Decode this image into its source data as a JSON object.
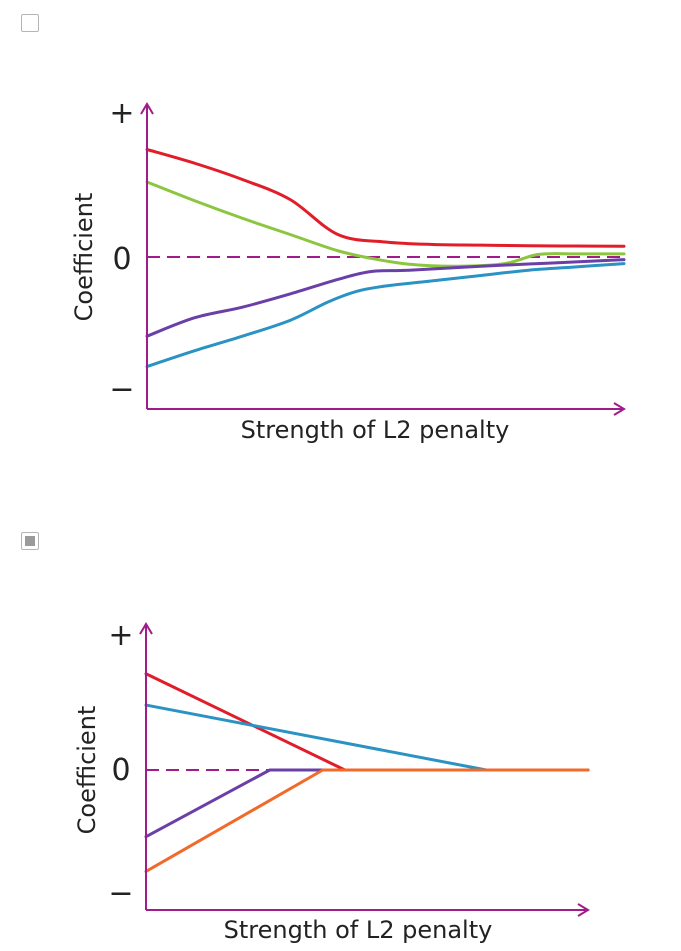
{
  "options": [
    {
      "checked": false,
      "chart_data": {
        "type": "line",
        "title": "",
        "xlabel": "Strength of L2 penalty",
        "ylabel": "Coefficient",
        "y_tick_labels": {
          "plus": "+",
          "zero": "0",
          "minus": "−"
        },
        "xlim": [
          0,
          1
        ],
        "ylim": [
          -1,
          1
        ],
        "zero_line": "dashed",
        "axis_color": "#a01c8a",
        "series": [
          {
            "color": "#e11d2a",
            "points": [
              [
                0,
                0.86
              ],
              [
                0.1,
                0.75
              ],
              [
                0.2,
                0.62
              ],
              [
                0.3,
                0.46
              ],
              [
                0.4,
                0.18
              ],
              [
                0.5,
                0.12
              ],
              [
                0.6,
                0.1
              ],
              [
                0.7,
                0.095
              ],
              [
                0.8,
                0.09
              ],
              [
                0.9,
                0.088
              ],
              [
                1,
                0.086
              ]
            ]
          },
          {
            "color": "#8cc63f",
            "points": [
              [
                0,
                0.6
              ],
              [
                0.1,
                0.45
              ],
              [
                0.2,
                0.31
              ],
              [
                0.3,
                0.18
              ],
              [
                0.4,
                0.05
              ],
              [
                0.47,
                -0.01
              ],
              [
                0.55,
                -0.055
              ],
              [
                0.65,
                -0.07
              ],
              [
                0.75,
                -0.05
              ],
              [
                0.82,
                0.02
              ],
              [
                0.9,
                0.025
              ],
              [
                1,
                0.025
              ]
            ]
          },
          {
            "color": "#6a3fa8",
            "points": [
              [
                0,
                -0.6
              ],
              [
                0.1,
                -0.46
              ],
              [
                0.2,
                -0.38
              ],
              [
                0.3,
                -0.28
              ],
              [
                0.4,
                -0.17
              ],
              [
                0.47,
                -0.11
              ],
              [
                0.55,
                -0.1
              ],
              [
                0.7,
                -0.07
              ],
              [
                0.85,
                -0.045
              ],
              [
                1,
                -0.02
              ]
            ]
          },
          {
            "color": "#2a93c4",
            "points": [
              [
                0,
                -0.83
              ],
              [
                0.1,
                -0.71
              ],
              [
                0.2,
                -0.6
              ],
              [
                0.3,
                -0.48
              ],
              [
                0.38,
                -0.34
              ],
              [
                0.44,
                -0.26
              ],
              [
                0.5,
                -0.22
              ],
              [
                0.6,
                -0.18
              ],
              [
                0.7,
                -0.14
              ],
              [
                0.8,
                -0.1
              ],
              [
                0.9,
                -0.075
              ],
              [
                1,
                -0.05
              ]
            ]
          }
        ]
      }
    },
    {
      "checked": true,
      "chart_data": {
        "type": "line",
        "title": "",
        "xlabel": "Strength of L2 penalty",
        "ylabel": "Coefficient",
        "y_tick_labels": {
          "plus": "+",
          "zero": "0",
          "minus": "−"
        },
        "xlim": [
          0,
          1
        ],
        "ylim": [
          -1,
          1
        ],
        "zero_line": "dashed",
        "axis_color": "#a01c8a",
        "series": [
          {
            "color": "#e11d2a",
            "points": [
              [
                0,
                0.83
              ],
              [
                0.45,
                0.0
              ],
              [
                1,
                0.0
              ]
            ]
          },
          {
            "color": "#2a93c4",
            "points": [
              [
                0,
                0.56
              ],
              [
                0.77,
                0.0
              ],
              [
                1,
                0.0
              ]
            ]
          },
          {
            "color": "#6a3fa8",
            "points": [
              [
                0,
                -0.48
              ],
              [
                0.28,
                0.0
              ],
              [
                1,
                0.0
              ]
            ]
          },
          {
            "color": "#f26a2a",
            "points": [
              [
                0,
                -0.73
              ],
              [
                0.4,
                0.0
              ],
              [
                1,
                0.0
              ]
            ]
          }
        ]
      }
    }
  ]
}
